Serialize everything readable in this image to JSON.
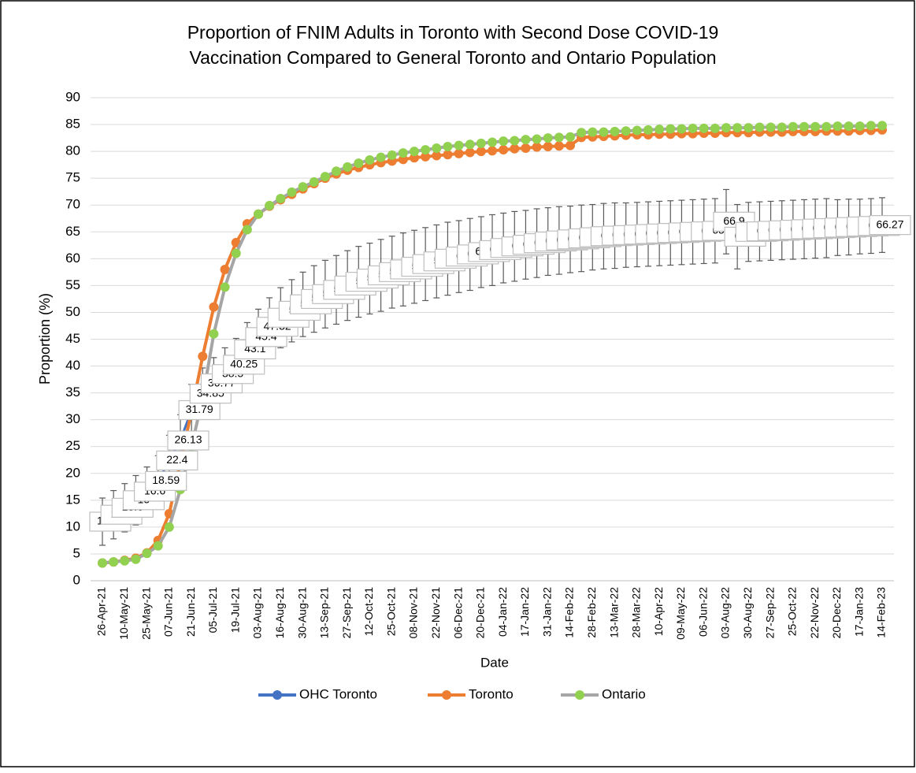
{
  "chart_data": {
    "type": "line",
    "title": "Proportion of FNIM Adults in Toronto with Second Dose COVID-19",
    "subtitle": "Vaccination Compared to General Toronto and Ontario Population",
    "x_label": "Date",
    "y_label": "Proportion (%)",
    "categories": [
      "26-Apr-21",
      null,
      "10-May-21",
      null,
      "25-May-21",
      null,
      "07-Jun-21",
      null,
      "21-Jun-21",
      null,
      "05-Jul-21",
      null,
      "19-Jul-21",
      null,
      "03-Aug-21",
      null,
      "16-Aug-21",
      null,
      "30-Aug-21",
      null,
      "13-Sep-21",
      null,
      "27-Sep-21",
      null,
      "12-Oct-21",
      null,
      "25-Oct-21",
      null,
      "08-Nov-21",
      null,
      "22-Nov-21",
      null,
      "06-Dec-21",
      null,
      "20-Dec-21",
      null,
      "04-Jan-22",
      null,
      "17-Jan-22",
      null,
      "31-Jan-22",
      null,
      "14-Feb-22",
      null,
      "28-Feb-22",
      null,
      "13-Mar-22",
      null,
      "28-Mar-22",
      null,
      "10-Apr-22",
      null,
      "09-May-22",
      null,
      "06-Jun-22",
      null,
      "03-Aug-22",
      null,
      "30-Aug-22",
      null,
      "27-Sep-22",
      null,
      "25-Oct-22",
      null,
      "22-Nov-22",
      null,
      "20-Dec-22",
      null,
      "17-Jan-23",
      null,
      "14-Feb-23"
    ],
    "series": [
      {
        "name": "OHC Toronto",
        "color": "#4472c4",
        "marker_color": "#4472c4",
        "data_labels": true,
        "values": [
          11.01,
          12.3,
          13.6,
          15.0,
          16.6,
          18.59,
          22.4,
          26.13,
          31.79,
          34.85,
          36.77,
          38.5,
          40.25,
          43.1,
          45.4,
          47.32,
          49.0,
          50.3,
          51.5,
          52.5,
          53.4,
          54.2,
          55.0,
          55.7,
          56.3,
          56.9,
          57.5,
          58.0,
          58.5,
          59.0,
          59.5,
          60.0,
          60.4,
          60.8,
          61.23,
          61.6,
          62.0,
          62.3,
          62.6,
          62.9,
          63.2,
          63.4,
          63.6,
          63.8,
          64.0,
          64.2,
          64.3,
          64.4,
          64.5,
          64.6,
          64.7,
          64.8,
          64.9,
          65.0,
          65.1,
          65.2,
          66.9,
          64.1,
          65.0,
          65.1,
          65.2,
          65.3,
          65.4,
          65.5,
          65.6,
          65.7,
          65.8,
          65.9,
          66.0,
          66.1,
          66.27
        ],
        "errors": [
          4.4,
          4.5,
          4.5,
          4.6,
          4.6,
          4.7,
          4.7,
          4.8,
          4.8,
          4.8,
          4.8,
          4.9,
          4.9,
          5,
          5.2,
          5.4,
          5.6,
          5.8,
          6,
          6.2,
          6.3,
          6.4,
          6.5,
          6.6,
          6.6,
          6.7,
          6.7,
          6.8,
          6.8,
          6.8,
          6.8,
          6.8,
          6.7,
          6.7,
          6.6,
          6.6,
          6.5,
          6.5,
          6.4,
          6.4,
          6.3,
          6.3,
          6.2,
          6.2,
          6.1,
          6.1,
          6.1,
          6,
          6,
          6,
          6,
          6,
          6,
          6,
          6,
          6,
          6,
          6,
          5.5,
          5.5,
          5.5,
          5.5,
          5.5,
          5.5,
          5.5,
          5.5,
          5.2,
          5.2,
          5.1,
          5.1,
          5.1
        ]
      },
      {
        "name": "Toronto",
        "color": "#ed7d31",
        "marker_color": "#ed7d31",
        "values": [
          3.3,
          3.5,
          3.8,
          4.2,
          5.2,
          7.5,
          12.5,
          22,
          31.5,
          41.8,
          51,
          58,
          63,
          66.5,
          68.3,
          69.8,
          71,
          72,
          73,
          74,
          75,
          75.8,
          76.5,
          77,
          77.5,
          77.9,
          78.2,
          78.5,
          78.8,
          79.0,
          79.2,
          79.4,
          79.6,
          79.8,
          80,
          80.1,
          80.3,
          80.5,
          80.6,
          80.8,
          80.9,
          81,
          81.1,
          82.6,
          82.7,
          82.8,
          82.9,
          83,
          83.1,
          83.1,
          83.2,
          83.2,
          83.3,
          83.3,
          83.4,
          83.4,
          83.5,
          83.5,
          83.5,
          83.6,
          83.6,
          83.6,
          83.7,
          83.7,
          83.7,
          83.8,
          83.8,
          83.8,
          83.9,
          83.9,
          84
        ]
      },
      {
        "name": "Ontario",
        "color": "#a5a5a5",
        "marker_color": "#92d050",
        "values": [
          3.3,
          3.5,
          3.7,
          4,
          5.1,
          6.5,
          10,
          17,
          25,
          34,
          46,
          54.7,
          61,
          65.4,
          68.3,
          69.9,
          71.2,
          72.4,
          73.4,
          74.3,
          75.3,
          76.3,
          77.1,
          77.8,
          78.4,
          78.9,
          79.3,
          79.7,
          80,
          80.3,
          80.6,
          80.9,
          81.1,
          81.3,
          81.5,
          81.7,
          81.9,
          82,
          82.2,
          82.3,
          82.5,
          82.6,
          82.7,
          83.5,
          83.6,
          83.6,
          83.7,
          83.8,
          83.9,
          84,
          84.1,
          84.2,
          84.2,
          84.3,
          84.3,
          84.3,
          84.4,
          84.4,
          84.4,
          84.5,
          84.5,
          84.5,
          84.6,
          84.6,
          84.6,
          84.6,
          84.7,
          84.7,
          84.7,
          84.8,
          84.8
        ]
      }
    ],
    "ylim": [
      0,
      90
    ],
    "yticks": [
      0,
      5,
      10,
      15,
      20,
      25,
      30,
      35,
      40,
      45,
      50,
      55,
      60,
      65,
      70,
      75,
      80,
      85,
      90
    ],
    "grid": true,
    "legend": "bottom"
  }
}
